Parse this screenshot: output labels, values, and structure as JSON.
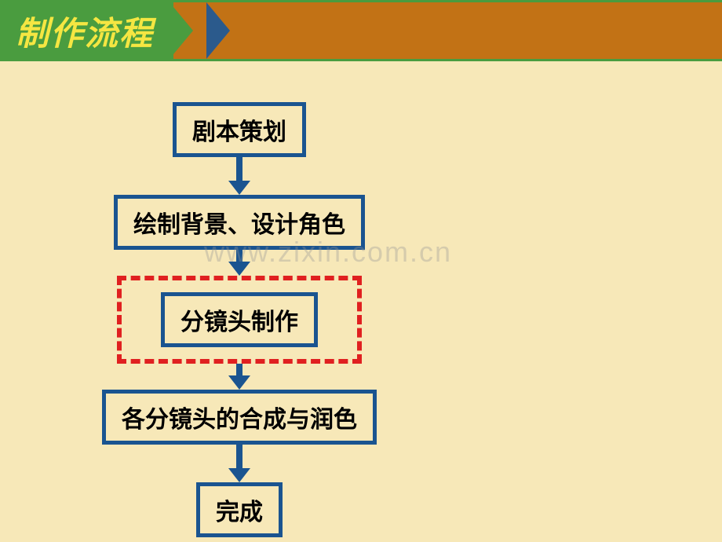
{
  "header": {
    "title": "制作流程",
    "title_color": "#f5e642",
    "title_bg": "#4a9c3f",
    "bar_bg": "#c27215",
    "border_color": "#4a9c3f",
    "chevron_colors": [
      "#4a9c3f",
      "#f5e642",
      "#2b5a8c"
    ]
  },
  "flowchart": {
    "type": "flowchart",
    "background_color": "#f7e8b8",
    "box_border_color": "#1a5490",
    "box_border_width": 5,
    "box_bg": "#f7e8b8",
    "box_font_size": 30,
    "box_font_weight": "bold",
    "arrow_color": "#1a5490",
    "highlight_border_color": "#e02020",
    "highlight_border_style": "dashed",
    "highlight_border_width": 6,
    "nodes": [
      {
        "id": "n1",
        "label": "剧本策划",
        "highlighted": false
      },
      {
        "id": "n2",
        "label": "绘制背景、设计角色",
        "highlighted": false
      },
      {
        "id": "n3",
        "label": "分镜头制作",
        "highlighted": true
      },
      {
        "id": "n4",
        "label": "各分镜头的合成与润色",
        "highlighted": false
      },
      {
        "id": "n5",
        "label": "完成",
        "highlighted": false
      }
    ],
    "edges": [
      {
        "from": "n1",
        "to": "n2"
      },
      {
        "from": "n2",
        "to": "n3"
      },
      {
        "from": "n3",
        "to": "n4"
      },
      {
        "from": "n4",
        "to": "n5"
      }
    ]
  },
  "watermark": {
    "text": "www.zixin.com.cn",
    "color": "rgba(150,150,150,0.35)",
    "font_size": 36
  }
}
